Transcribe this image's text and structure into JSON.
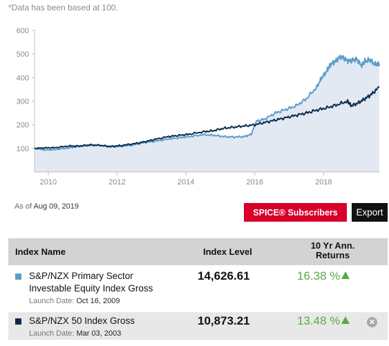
{
  "note": "*Data has been based at 100.",
  "as_of": {
    "label": "As of",
    "date": "Aug 09, 2019"
  },
  "buttons": {
    "spice": "SPICE® Subscribers",
    "export": "Export"
  },
  "colors": {
    "primary_sector": "#5b9ec9",
    "nzx50": "#0c2a4e",
    "fill": "#e3e9f3",
    "up": "#5aa846",
    "spice": "#d6002a"
  },
  "table": {
    "headers": {
      "name": "Index Name",
      "level": "Index Level",
      "returns": "10 Yr Ann. Returns"
    },
    "rows": [
      {
        "name_line1": "S&P/NZX Primary Sector",
        "name_line2": "Investable Equity Index Gross",
        "launch_label": "Launch Date:",
        "launch_date": "Oct 16, 2009",
        "level": "14,626.61",
        "returns": "16.38 %",
        "trend": "up"
      },
      {
        "name_line1": "S&P/NZX 50 Index Gross",
        "launch_label": "Launch Date:",
        "launch_date": "Mar 03, 2003",
        "level": "10,873.21",
        "returns": "13.48 %",
        "trend": "up",
        "removable": true
      }
    ]
  },
  "chart_data": {
    "type": "line",
    "title": "",
    "xlabel": "",
    "ylabel": "",
    "ylim": [
      0,
      600
    ],
    "xlim": [
      2009.6,
      2019.62
    ],
    "y_ticks": [
      100,
      200,
      300,
      400,
      500,
      600
    ],
    "x_ticks": [
      2010,
      2012,
      2014,
      2016,
      2018
    ],
    "grid": false,
    "legend": "none",
    "series": [
      {
        "name": "S&P/NZX Primary Sector Investable Equity Index Gross",
        "color": "#5b9ec9",
        "x": [
          2009.6,
          2009.9,
          2010.2,
          2010.6,
          2010.9,
          2011.2,
          2011.5,
          2011.8,
          2012.1,
          2012.5,
          2012.8,
          2013.1,
          2013.5,
          2013.8,
          2014.1,
          2014.5,
          2014.8,
          2015.1,
          2015.4,
          2015.7,
          2015.9,
          2016.05,
          2016.3,
          2016.6,
          2016.9,
          2017.2,
          2017.5,
          2017.8,
          2017.95,
          2018.1,
          2018.2,
          2018.35,
          2018.5,
          2018.65,
          2018.8,
          2018.95,
          2019.1,
          2019.2,
          2019.35,
          2019.5,
          2019.62
        ],
        "y": [
          100,
          93,
          95,
          102,
          108,
          112,
          113,
          106,
          108,
          115,
          125,
          130,
          140,
          145,
          150,
          158,
          156,
          150,
          148,
          150,
          160,
          215,
          225,
          250,
          265,
          280,
          310,
          360,
          400,
          430,
          455,
          470,
          490,
          475,
          470,
          480,
          450,
          470,
          475,
          455,
          460
        ]
      },
      {
        "name": "S&P/NZX 50 Index Gross",
        "color": "#0c2a4e",
        "x": [
          2009.6,
          2009.9,
          2010.2,
          2010.6,
          2010.9,
          2011.2,
          2011.5,
          2011.8,
          2012.1,
          2012.5,
          2012.8,
          2013.1,
          2013.5,
          2013.8,
          2014.1,
          2014.5,
          2014.8,
          2015.1,
          2015.4,
          2015.7,
          2016.0,
          2016.3,
          2016.6,
          2016.9,
          2017.2,
          2017.5,
          2017.8,
          2018.1,
          2018.4,
          2018.7,
          2018.8,
          2019.0,
          2019.2,
          2019.4,
          2019.62
        ],
        "y": [
          100,
          102,
          103,
          110,
          110,
          115,
          113,
          108,
          112,
          120,
          128,
          138,
          150,
          155,
          160,
          170,
          175,
          185,
          190,
          195,
          200,
          210,
          220,
          230,
          240,
          250,
          262,
          272,
          285,
          300,
          280,
          292,
          310,
          330,
          360
        ]
      }
    ]
  }
}
